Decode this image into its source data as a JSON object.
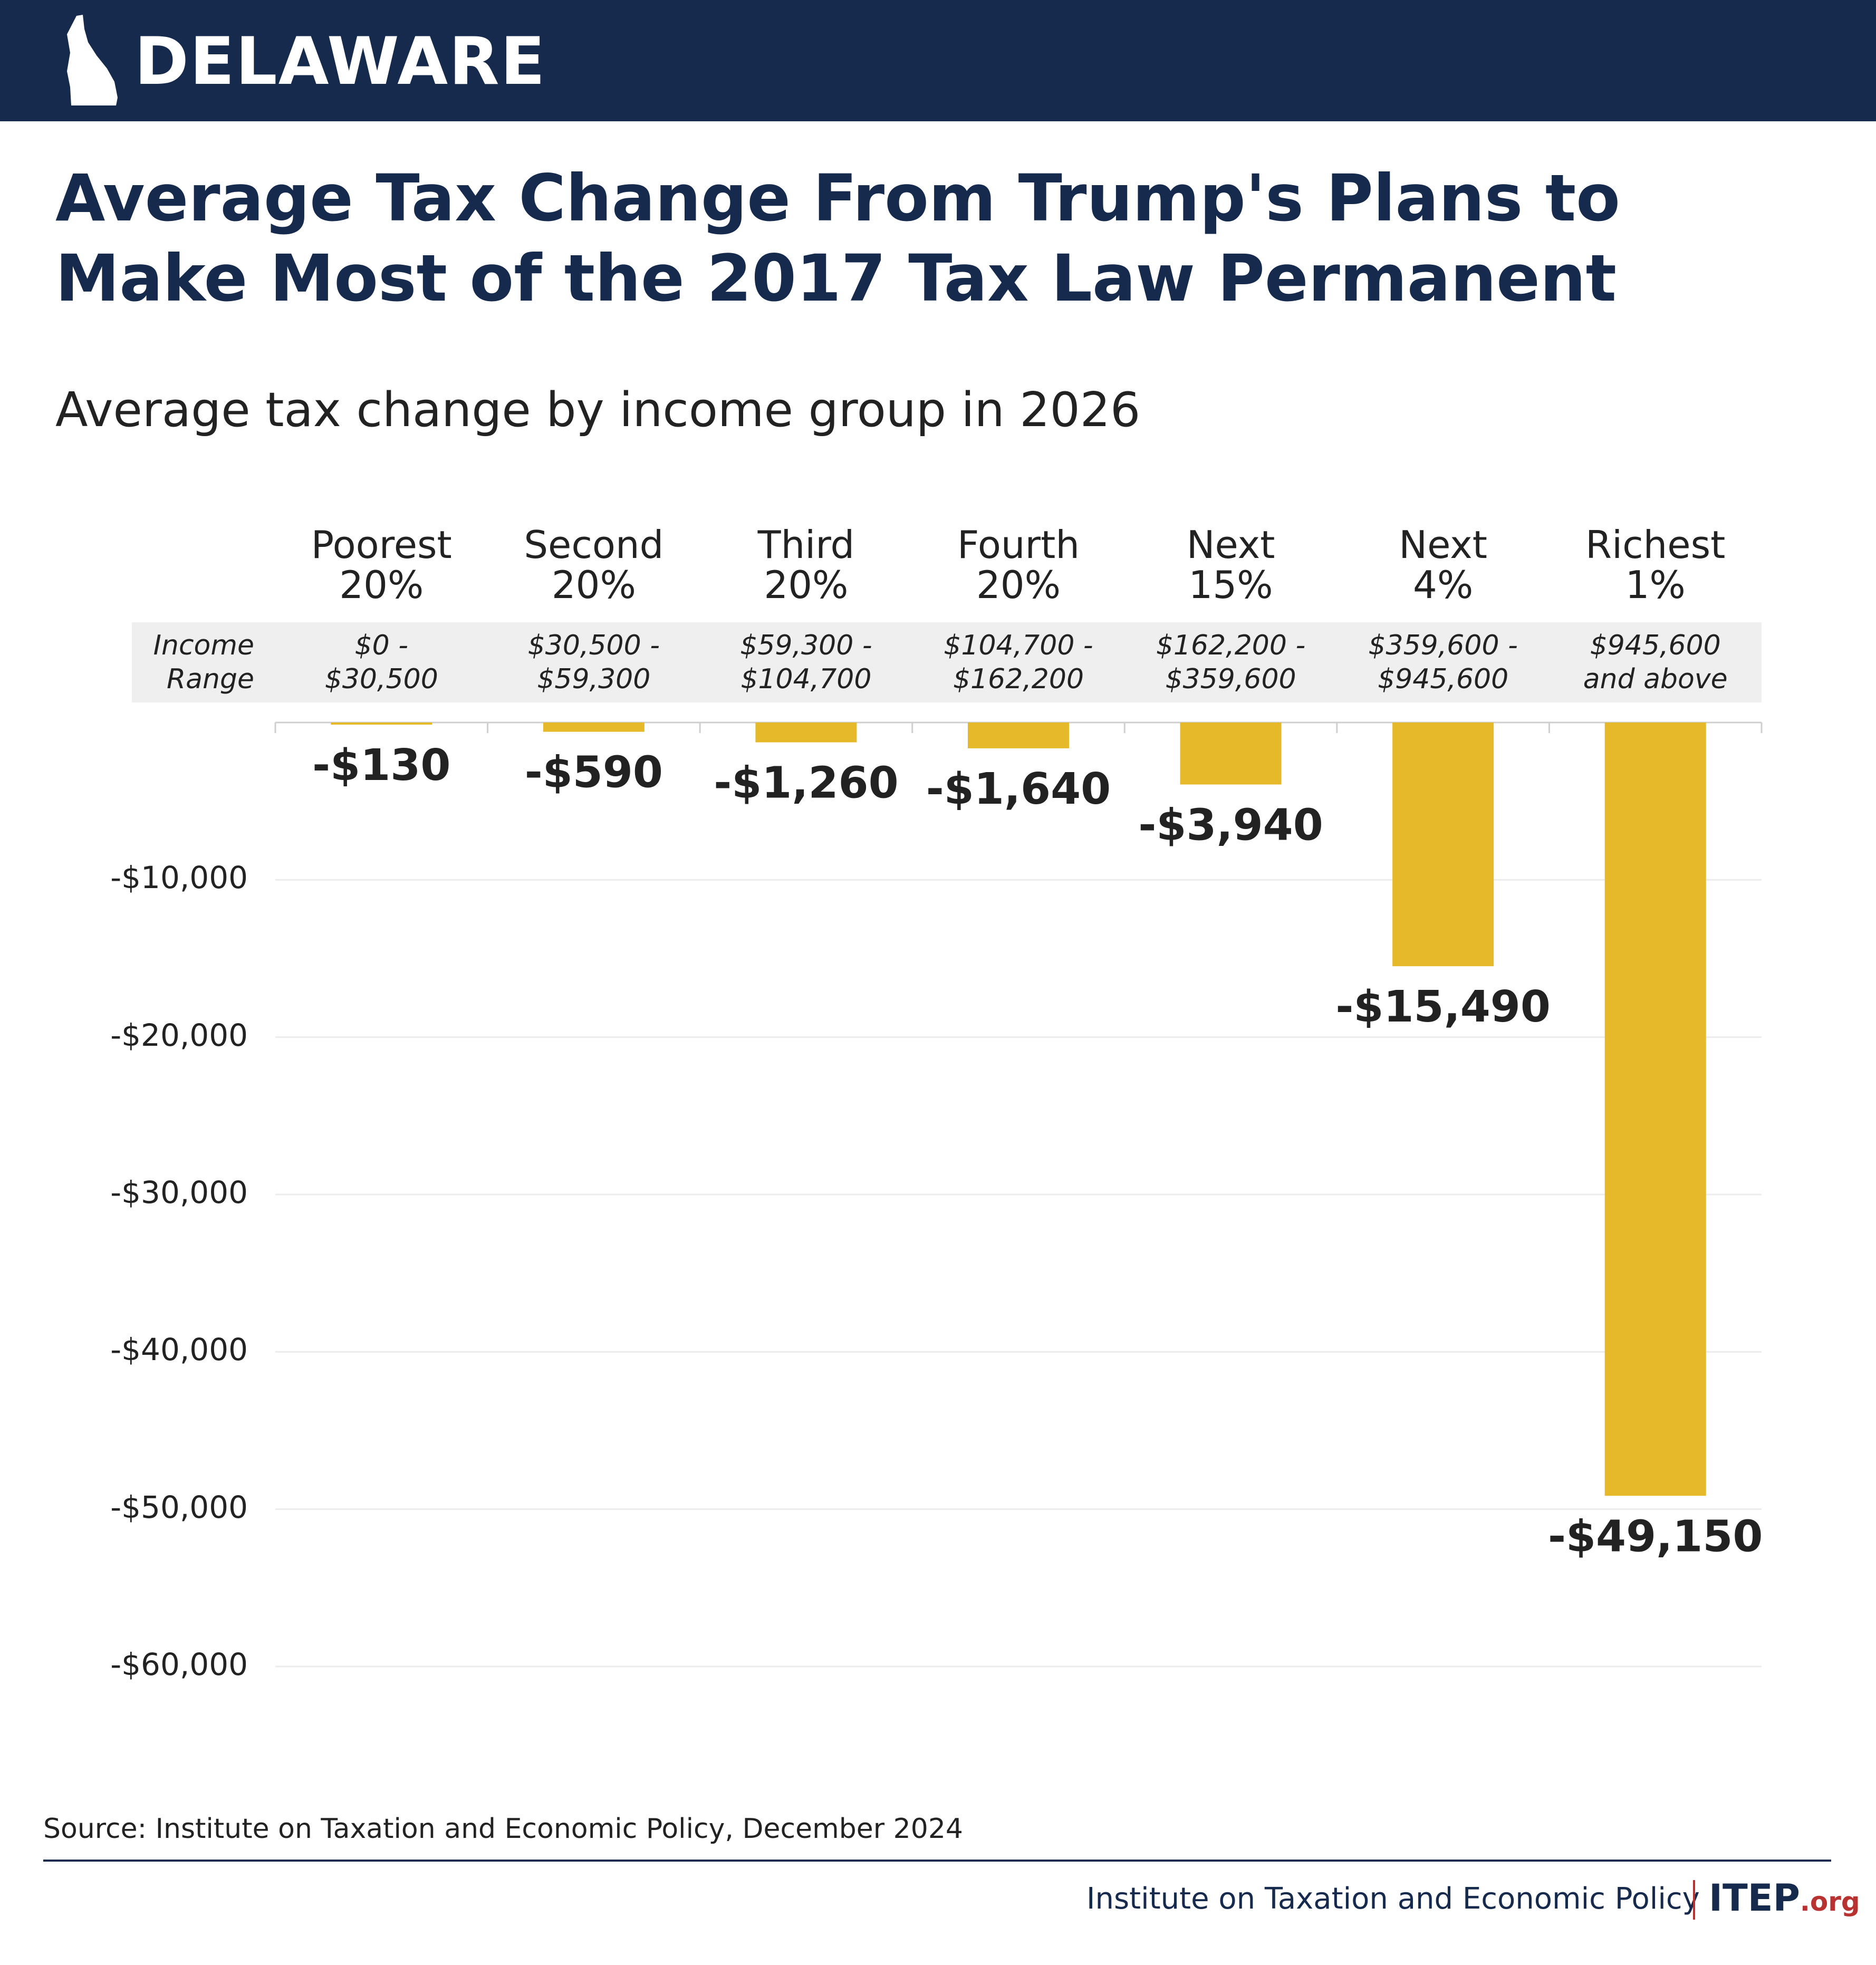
{
  "header": {
    "state": "DELAWARE"
  },
  "colors": {
    "brand_navy": "#162a4e",
    "bar": "#e6b92a",
    "band": "#efefef",
    "accent_red": "#b83232"
  },
  "icons": {
    "state_shape": "delaware-state-outline-icon"
  },
  "range_heading": [
    "Income",
    "Range"
  ],
  "chart_data": {
    "type": "bar",
    "title": "Average Tax Change From Trump's Plans to Make Most of the 2017 Tax Law Permanent",
    "subtitle": "Average tax change by income group in 2026",
    "categories": [
      [
        "Poorest",
        "20%"
      ],
      [
        "Second",
        "20%"
      ],
      [
        "Third",
        "20%"
      ],
      [
        "Fourth",
        "20%"
      ],
      [
        "Next",
        "15%"
      ],
      [
        "Next",
        "4%"
      ],
      [
        "Richest",
        "1%"
      ]
    ],
    "income_ranges": [
      [
        "$0 -",
        "$30,500"
      ],
      [
        "$30,500 -",
        "$59,300"
      ],
      [
        "$59,300 -",
        "$104,700"
      ],
      [
        "$104,700 -",
        "$162,200"
      ],
      [
        "$162,200 -",
        "$359,600"
      ],
      [
        "$359,600 -",
        "$945,600"
      ],
      [
        "$945,600",
        "and above"
      ]
    ],
    "values": [
      -130,
      -590,
      -1260,
      -1640,
      -3940,
      -15490,
      -49150
    ],
    "data_labels": [
      "-$130",
      "-$590",
      "-$1,260",
      "-$1,640",
      "-$3,940",
      "-$15,490",
      "-$49,150"
    ],
    "y_ticks": [
      -10000,
      -20000,
      -30000,
      -40000,
      -50000,
      -60000
    ],
    "y_tick_labels": [
      "-$10,000",
      "-$20,000",
      "-$30,000",
      "-$40,000",
      "-$50,000",
      "-$60,000"
    ],
    "ylim": [
      -60000,
      0
    ],
    "grid": true,
    "legend": "none"
  },
  "source": "Source: Institute on Taxation and Economic Policy, December 2024",
  "footer": {
    "org_name": "Institute on Taxation and Economic Policy",
    "logo_main": "ITEP",
    "logo_suffix": ".org"
  }
}
